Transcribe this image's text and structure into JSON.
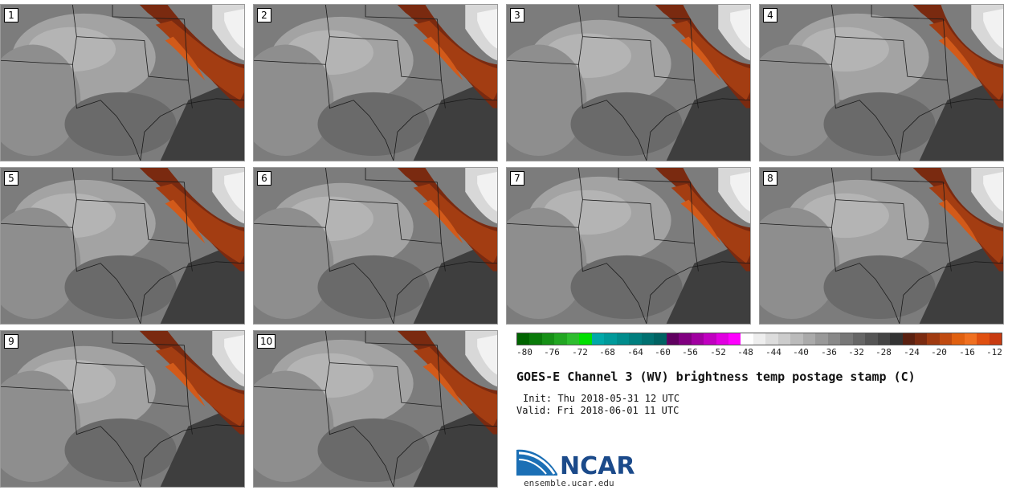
{
  "panels": [
    {
      "label": "1"
    },
    {
      "label": "2"
    },
    {
      "label": "3"
    },
    {
      "label": "4"
    },
    {
      "label": "5"
    },
    {
      "label": "6"
    },
    {
      "label": "7"
    },
    {
      "label": "8"
    },
    {
      "label": "9"
    },
    {
      "label": "10"
    }
  ],
  "colorbar": {
    "ticks": [
      "-80",
      "-76",
      "-72",
      "-68",
      "-64",
      "-60",
      "-56",
      "-52",
      "-48",
      "-44",
      "-40",
      "-36",
      "-32",
      "-28",
      "-24",
      "-20",
      "-16",
      "-12"
    ],
    "colors": [
      "#006400",
      "#0a7a0a",
      "#169016",
      "#22a622",
      "#2ebd2e",
      "#00e000",
      "#00a8a8",
      "#009a9a",
      "#008c8c",
      "#007e7e",
      "#007070",
      "#006262",
      "#600060",
      "#800080",
      "#a000a0",
      "#c000c0",
      "#e000e0",
      "#ff00ff",
      "#ffffff",
      "#eeeeee",
      "#dddddd",
      "#cccccc",
      "#bbbbbb",
      "#aaaaaa",
      "#999999",
      "#888888",
      "#777777",
      "#666666",
      "#555555",
      "#444444",
      "#333333",
      "#5a2010",
      "#7a2a10",
      "#a03a10",
      "#c04a10",
      "#e06010",
      "#f07020",
      "#e05010",
      "#c83a10"
    ]
  },
  "title": "GOES-E Channel 3 (WV) brightness temp postage stamp (C)",
  "init": "Init: Thu 2018-05-31 12 UTC",
  "valid": "Valid: Fri 2018-06-01 11 UTC",
  "logo_text": "NCAR",
  "site": "ensemble.ucar.edu"
}
